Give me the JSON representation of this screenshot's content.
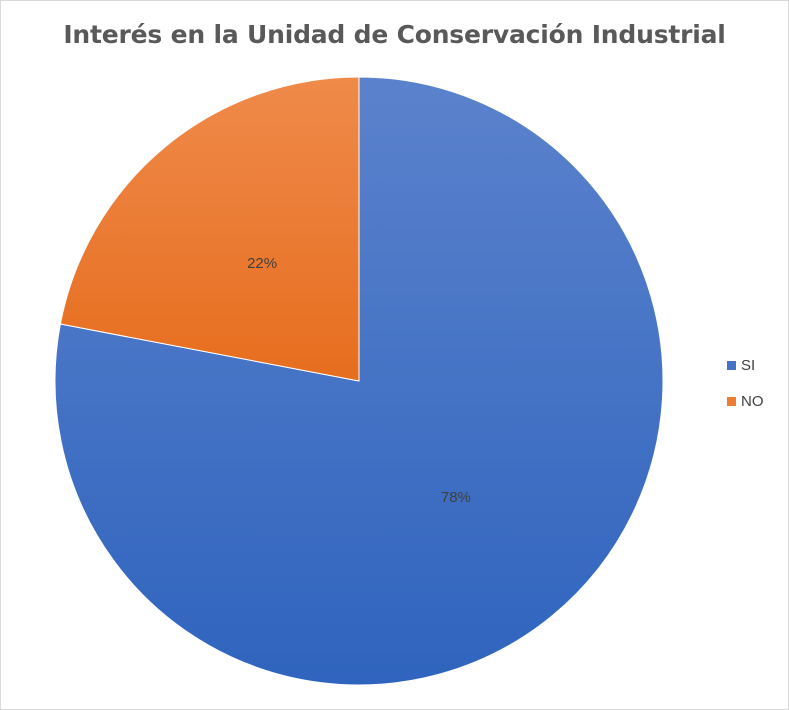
{
  "chart_data": {
    "type": "pie",
    "title": "Interés en la Unidad de Conservación Industrial",
    "categories": [
      "SI",
      "NO"
    ],
    "values": [
      78,
      22
    ],
    "data_labels": [
      "78%",
      "22%"
    ],
    "colors": [
      "#4472c4",
      "#ed7d31"
    ],
    "legend_position": "right",
    "start_angle_deg": 0,
    "direction": "clockwise"
  }
}
